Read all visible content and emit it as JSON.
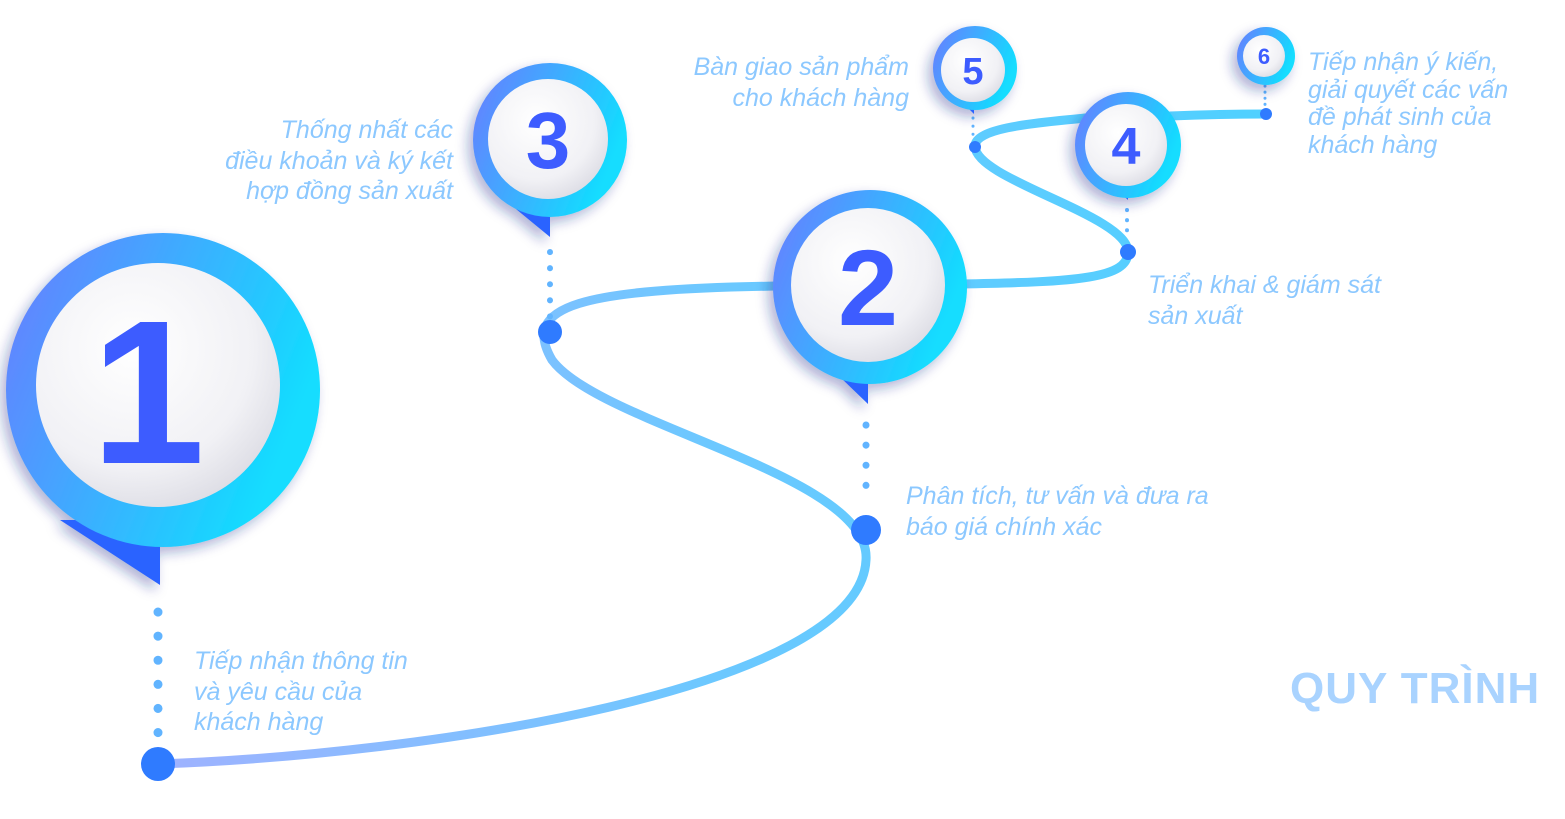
{
  "title": "QUY TRÌNH",
  "colors": {
    "path_start": "#8fb4ff",
    "path_end": "#4fd0ff",
    "ring_start": "#6a7bff",
    "ring_end": "#12ddff",
    "number": "#3c5cff",
    "dot": "#2f7bff",
    "label": "#8cc8ff"
  },
  "steps": [
    {
      "number": "1",
      "label": [
        "Tiếp nhận thông tin",
        "và yêu cầu của",
        "khách hàng"
      ]
    },
    {
      "number": "2",
      "label": [
        "Phân tích, tư vấn và đưa ra",
        "báo giá chính xác"
      ]
    },
    {
      "number": "3",
      "label": [
        "Thống nhất các",
        "điều khoản và ký kết",
        "hợp đồng sản xuất"
      ]
    },
    {
      "number": "4",
      "label": [
        "Triển khai & giám sát",
        "sản xuất"
      ]
    },
    {
      "number": "5",
      "label": [
        "Bàn giao sản phẩm",
        "cho khách hàng"
      ]
    },
    {
      "number": "6",
      "label": [
        "Tiếp nhận ý kiến,",
        "giải quyết các vấn",
        "đề phát sinh của",
        "khách hàng"
      ]
    }
  ]
}
